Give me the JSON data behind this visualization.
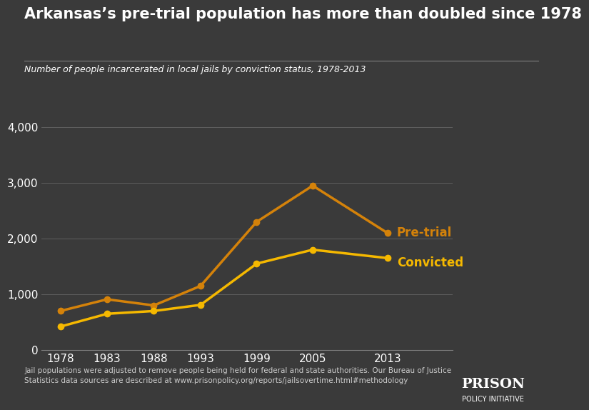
{
  "title": "Arkansas’s pre-trial population has more than doubled since 1978",
  "subtitle": "Number of people incarcerated in local jails by conviction status, 1978-2013",
  "years": [
    1978,
    1983,
    1988,
    1993,
    1999,
    2005,
    2013
  ],
  "pretrial": [
    700,
    910,
    800,
    1150,
    2300,
    2950,
    2100
  ],
  "convicted": [
    420,
    650,
    700,
    810,
    1550,
    1800,
    1650
  ],
  "pretrial_color": "#D4820A",
  "convicted_color": "#F5B800",
  "bg_color": "#3a3a3a",
  "text_color": "#ffffff",
  "grid_color": "#808080",
  "ylim": [
    0,
    4000
  ],
  "yticks": [
    0,
    1000,
    2000,
    3000,
    4000
  ],
  "xlim_min": 1976,
  "xlim_max": 2020,
  "pretrial_label": "Pre-trial",
  "convicted_label": "Convicted",
  "footnote_left": "Jail populations were adjusted to remove people being held for federal and state authorities. Our Bureau of Justice\nStatistics data sources are described at www.prisonpolicy.org/reports/jailsovertime.html#methodology",
  "logo_prison": "PRISON",
  "logo_sub": "POLICY INITIATIVE",
  "title_fontsize": 15,
  "subtitle_fontsize": 9,
  "tick_fontsize": 11,
  "label_fontsize": 12,
  "footnote_fontsize": 7.5,
  "logo_fontsize": 14,
  "logo_sub_fontsize": 7,
  "linewidth": 2.5,
  "markersize": 6
}
